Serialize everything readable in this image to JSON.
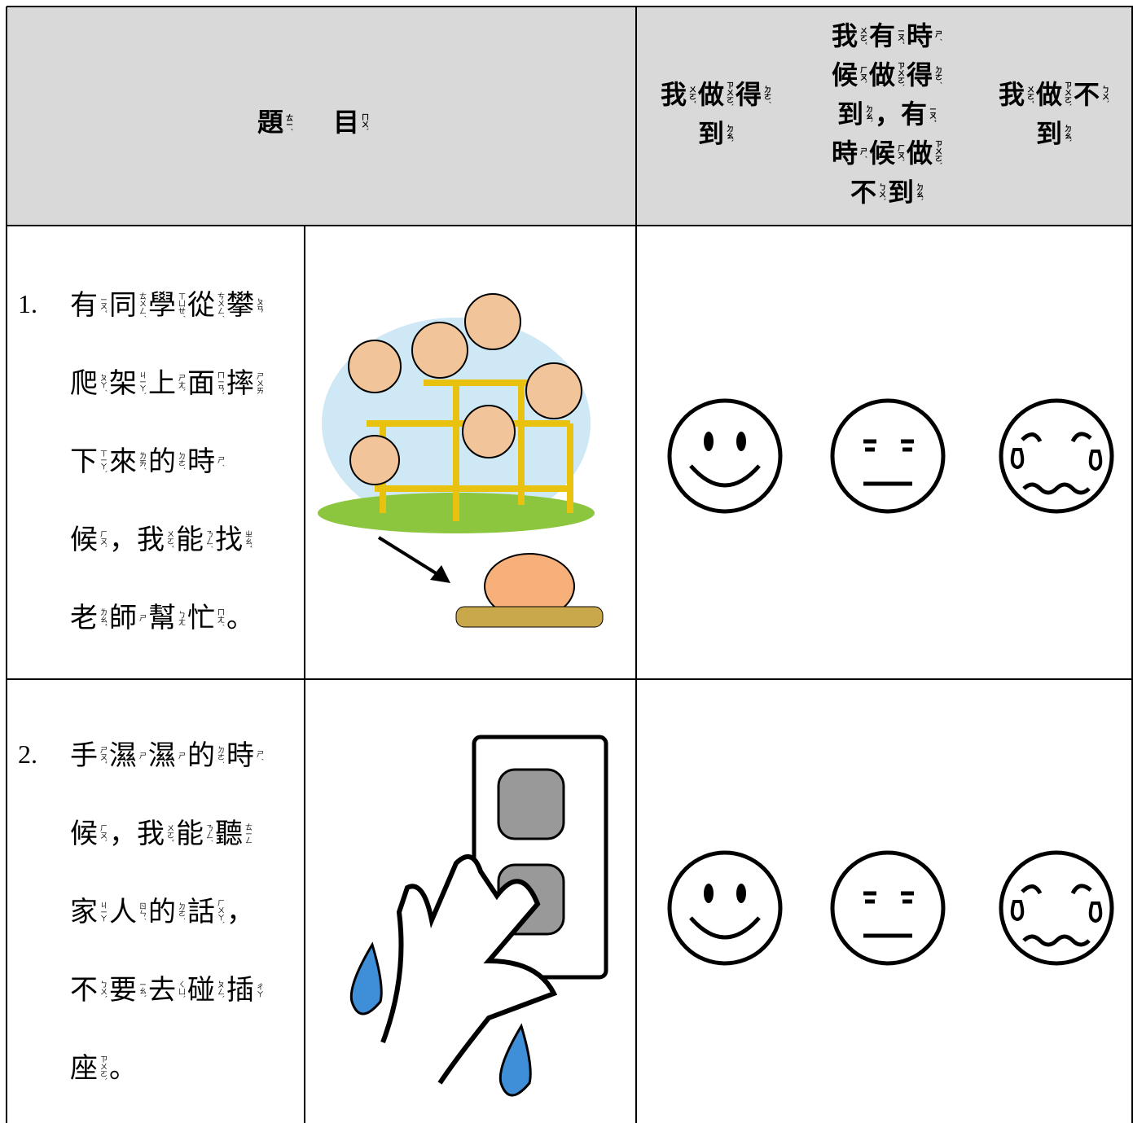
{
  "header": {
    "title": [
      [
        "題",
        "ㄊㄧˊ"
      ],
      [
        "目",
        "ㄇㄨˋ"
      ]
    ],
    "columns": [
      [
        [
          [
            "我",
            "ㄨㄛˇ"
          ],
          [
            "做",
            "ㄗㄨㄛˋ"
          ],
          [
            "得",
            "ㄉㄜˊ"
          ]
        ],
        [
          [
            "到",
            "ㄉㄠˋ"
          ]
        ]
      ],
      [
        [
          [
            "我",
            "ㄨㄛˇ"
          ],
          [
            "有",
            "ㄧㄡˇ"
          ],
          [
            "時",
            "ㄕˊ"
          ]
        ],
        [
          [
            "候",
            "ㄏㄡˋ"
          ],
          [
            "做",
            "ㄗㄨㄛˋ"
          ],
          [
            "得",
            "ㄉㄜˊ"
          ]
        ],
        [
          [
            "到",
            "ㄉㄠˋ"
          ],
          [
            "，"
          ],
          [
            "有",
            "ㄧㄡˇ"
          ]
        ],
        [
          [
            "時",
            "ㄕˊ"
          ],
          [
            "候",
            "ㄏㄡˋ"
          ],
          [
            "做",
            "ㄗㄨㄛˋ"
          ]
        ],
        [
          [
            "不",
            "ㄅㄨˋ"
          ],
          [
            "到",
            "ㄉㄠˋ"
          ]
        ]
      ],
      [
        [
          [
            "我",
            "ㄨㄛˇ"
          ],
          [
            "做",
            "ㄗㄨㄛˋ"
          ],
          [
            "不",
            "ㄅㄨˋ"
          ]
        ],
        [
          [
            "到",
            "ㄉㄠˋ"
          ]
        ]
      ]
    ]
  },
  "rows": [
    {
      "number": "1.",
      "lines": [
        [
          [
            "有",
            "ㄧㄡˇ"
          ],
          [
            "同",
            "ㄊㄨㄥˊ"
          ],
          [
            "學",
            "ㄒㄩㄝˊ"
          ],
          [
            "從",
            "ㄘㄨㄥˊ"
          ],
          [
            "攀",
            "ㄆㄢ"
          ]
        ],
        [
          [
            "爬",
            "ㄆㄚˊ"
          ],
          [
            "架",
            "ㄐㄧㄚˋ"
          ],
          [
            "上",
            "ㄕㄤˋ"
          ],
          [
            "面",
            "ㄇㄧㄢˋ"
          ],
          [
            "摔",
            "ㄕㄨㄞ"
          ]
        ],
        [
          [
            "下",
            "ㄒㄧㄚˋ"
          ],
          [
            "來",
            "ㄌㄞˊ"
          ],
          [
            "的",
            "ㄉㄜ˙"
          ],
          [
            "時",
            "ㄕˊ"
          ]
        ],
        [
          [
            "候",
            "ㄏㄡˋ"
          ],
          [
            "，"
          ],
          [
            "我",
            "ㄨㄛˇ"
          ],
          [
            "能",
            "ㄋㄥˊ"
          ],
          [
            "找",
            "ㄓㄠˇ"
          ]
        ],
        [
          [
            "老",
            "ㄌㄠˇ"
          ],
          [
            "師",
            "ㄕ"
          ],
          [
            "幫",
            "ㄅㄤ"
          ],
          [
            "忙",
            "ㄇㄤˊ"
          ],
          [
            "。"
          ]
        ]
      ]
    },
    {
      "number": "2.",
      "lines": [
        [
          [
            "手",
            "ㄕㄡˇ"
          ],
          [
            "濕",
            "ㄕ"
          ],
          [
            "濕",
            "ㄕ"
          ],
          [
            "的",
            "ㄉㄜ˙"
          ],
          [
            "時",
            "ㄕˊ"
          ]
        ],
        [
          [
            "候",
            "ㄏㄡˋ"
          ],
          [
            "，"
          ],
          [
            "我",
            "ㄨㄛˇ"
          ],
          [
            "能",
            "ㄋㄥˊ"
          ],
          [
            "聽",
            "ㄊㄧㄥ"
          ]
        ],
        [
          [
            "家",
            "ㄐㄧㄚ"
          ],
          [
            "人",
            "ㄖㄣˊ"
          ],
          [
            "的",
            "ㄉㄜ˙"
          ],
          [
            "話",
            "ㄏㄨㄚˋ"
          ],
          [
            "，"
          ]
        ],
        [
          [
            "不",
            "ㄅㄨˋ"
          ],
          [
            "要",
            "ㄧㄠˋ"
          ],
          [
            "去",
            "ㄑㄩˋ"
          ],
          [
            "碰",
            "ㄆㄥˋ"
          ],
          [
            "插",
            "ㄔㄚ"
          ]
        ],
        [
          [
            "座",
            "ㄗㄨㄛˋ"
          ],
          [
            "。"
          ]
        ]
      ]
    }
  ]
}
